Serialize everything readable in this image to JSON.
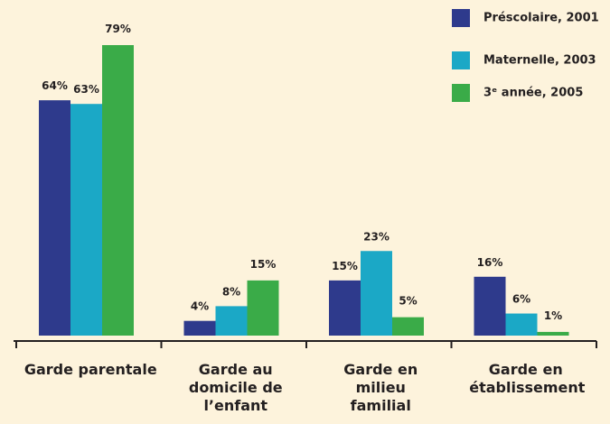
{
  "chart_data": {
    "type": "bar",
    "categories": [
      "Garde parentale",
      "Garde au domicile de l’enfant",
      "Garde en milieu familial",
      "Garde en établissement"
    ],
    "series": [
      {
        "name": "Préscolaire, 2001",
        "color": "#2e3a8c",
        "values": [
          64,
          4,
          15,
          16
        ],
        "value_labels": [
          "64%",
          "4%",
          "15%",
          "16%"
        ]
      },
      {
        "name": "Maternelle, 2003",
        "color": "#1ba8c6",
        "values": [
          63,
          8,
          23,
          6
        ],
        "value_labels": [
          "63%",
          "8%",
          "23%",
          "6%"
        ]
      },
      {
        "name": "3ᵉ année, 2005",
        "color": "#3aab48",
        "values": [
          79,
          15,
          5,
          1
        ],
        "value_labels": [
          "79%",
          "15%",
          "5%",
          "1%"
        ]
      }
    ],
    "legend": "top-right"
  }
}
